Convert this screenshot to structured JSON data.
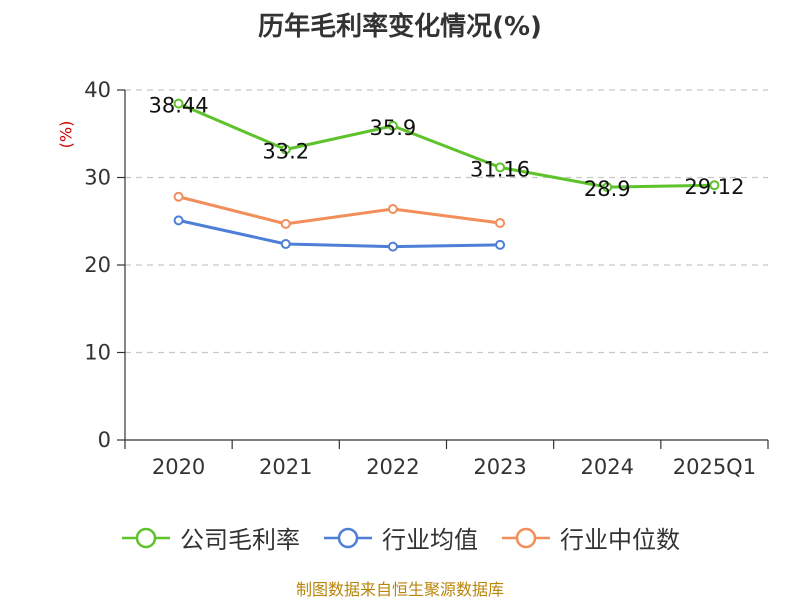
{
  "chart_data": {
    "type": "line",
    "title": "历年毛利率变化情况(%)",
    "ylabel": "(%)",
    "categories": [
      "2020",
      "2021",
      "2022",
      "2023",
      "2024",
      "2025Q1"
    ],
    "ylim": [
      0,
      40
    ],
    "yticks": [
      0,
      10,
      20,
      30,
      40
    ],
    "grid": true,
    "legend_position": "bottom",
    "series": [
      {
        "name": "公司毛利率",
        "color": "#5ec22a",
        "values": [
          38.44,
          33.2,
          35.9,
          31.16,
          28.9,
          29.12
        ],
        "data_labels": [
          "38.44",
          "33.2",
          "35.9",
          "31.16",
          "28.9",
          "29.12"
        ]
      },
      {
        "name": "行业均值",
        "color": "#4e7fd6",
        "values": [
          25.1,
          22.4,
          22.1,
          22.3,
          null,
          null
        ]
      },
      {
        "name": "行业中位数",
        "color": "#f28e5a",
        "values": [
          27.8,
          24.7,
          26.4,
          24.8,
          null,
          null
        ]
      }
    ]
  },
  "source_text": "制图数据来自恒生聚源数据库"
}
